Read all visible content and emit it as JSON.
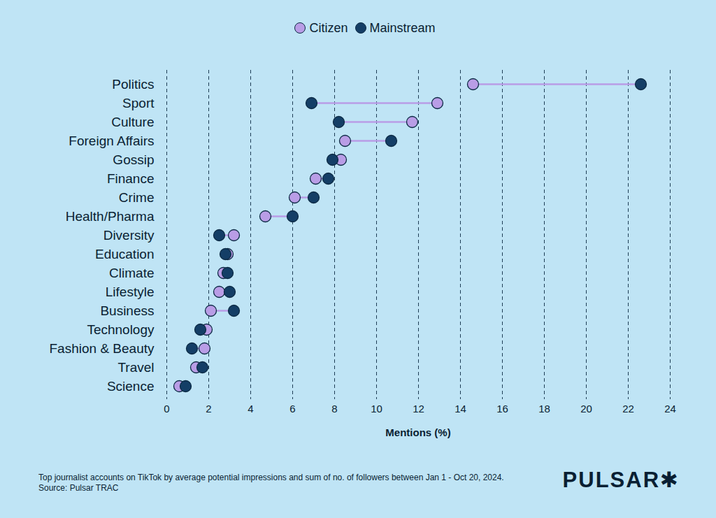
{
  "chart_data": {
    "type": "dumbbell",
    "orientation": "horizontal",
    "categories": [
      "Politics",
      "Sport",
      "Culture",
      "Foreign Affairs",
      "Gossip",
      "Finance",
      "Crime",
      "Health/Pharma",
      "Diversity",
      "Education",
      "Climate",
      "Lifestyle",
      "Business",
      "Technology",
      "Fashion & Beauty",
      "Travel",
      "Science"
    ],
    "series": [
      {
        "name": "Citizen",
        "color": "#b99de6",
        "values": [
          14.6,
          12.9,
          11.7,
          8.5,
          8.3,
          7.1,
          6.1,
          4.7,
          3.2,
          2.9,
          2.7,
          2.5,
          2.1,
          1.9,
          1.8,
          1.4,
          0.6
        ]
      },
      {
        "name": "Mainstream",
        "color": "#143e66",
        "values": [
          22.6,
          6.9,
          8.2,
          10.7,
          7.9,
          7.7,
          7.0,
          6.0,
          2.5,
          2.8,
          2.9,
          3.0,
          3.2,
          1.6,
          1.2,
          1.7,
          0.9
        ]
      }
    ],
    "x_label": "Mentions (%)",
    "xlim": [
      0,
      24
    ],
    "xticks": [
      0,
      2,
      4,
      6,
      8,
      10,
      12,
      14,
      16,
      18,
      20,
      22,
      24
    ],
    "grid": true,
    "legend": "top",
    "caption": "Top journalist accounts on TikTok by average potential impressions and sum of no. of followers between Jan 1 - Oct 20, 2024.",
    "source": "Source: Pulsar TRAC",
    "brand": "PULSAR✱"
  }
}
